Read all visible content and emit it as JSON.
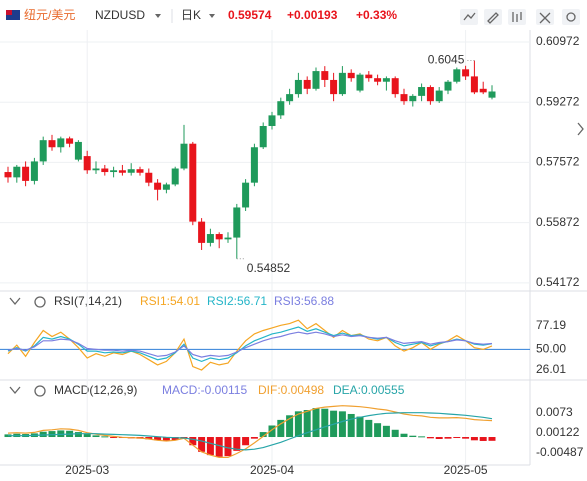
{
  "header": {
    "name": "纽元/美元",
    "symbol": "NZDUSD",
    "period": "日K",
    "price": "0.59574",
    "change": "+0.00193",
    "change_pct": "+0.33%"
  },
  "chart_data": [
    {
      "type": "candlestick",
      "categories": [
        null,
        null,
        null,
        null,
        null,
        null,
        null,
        null,
        null,
        "2025-03",
        null,
        null,
        null,
        null,
        null,
        null,
        null,
        null,
        null,
        null,
        null,
        null,
        null,
        null,
        null,
        null,
        null,
        null,
        null,
        null,
        "2025-04",
        null,
        null,
        null,
        null,
        null,
        null,
        null,
        null,
        null,
        null,
        null,
        null,
        null,
        null,
        null,
        null,
        null,
        null,
        null,
        null,
        null,
        "2025-05",
        null,
        null,
        null
      ],
      "open": [
        0.573,
        0.5715,
        0.5745,
        0.5705,
        0.576,
        0.582,
        0.58,
        0.5825,
        0.5765,
        0.5775,
        0.5735,
        0.574,
        0.573,
        0.5735,
        0.5728,
        0.5738,
        0.5728,
        0.57,
        0.568,
        0.5695,
        0.574,
        0.581,
        0.559,
        0.553,
        0.5555,
        0.554,
        0.5545,
        0.563,
        0.57,
        0.58,
        0.586,
        0.589,
        0.593,
        0.595,
        0.599,
        0.5965,
        0.6015,
        0.599,
        0.595,
        0.601,
        0.596,
        0.6005,
        0.5995,
        0.5985,
        0.5995,
        0.595,
        0.593,
        0.5945,
        0.597,
        0.593,
        0.596,
        0.5985,
        0.602,
        0.6,
        0.5965,
        0.594
      ],
      "high": [
        0.5745,
        0.575,
        0.576,
        0.577,
        0.583,
        0.5835,
        0.583,
        0.583,
        0.582,
        0.579,
        0.576,
        0.575,
        0.5745,
        0.575,
        0.5755,
        0.5745,
        0.574,
        0.571,
        0.57,
        0.5745,
        0.5863,
        0.5815,
        0.56,
        0.557,
        0.556,
        0.556,
        0.564,
        0.571,
        0.581,
        0.587,
        0.59,
        0.594,
        0.5965,
        0.601,
        0.6,
        0.6025,
        0.6029,
        0.601,
        0.60292,
        0.602,
        0.601,
        0.6015,
        0.6005,
        0.6,
        0.6,
        0.5965,
        0.595,
        0.598,
        0.5975,
        0.597,
        0.599,
        0.6025,
        0.603,
        0.6045,
        0.5985,
        0.5975
      ],
      "low": [
        0.57,
        0.57,
        0.569,
        0.5695,
        0.575,
        0.579,
        0.5785,
        0.58,
        0.576,
        0.5725,
        0.5725,
        0.572,
        0.5715,
        0.572,
        0.572,
        0.572,
        0.569,
        0.565,
        0.567,
        0.569,
        0.5735,
        0.558,
        0.551,
        0.552,
        0.5515,
        0.553,
        0.54852,
        0.562,
        0.569,
        0.5795,
        0.585,
        0.588,
        0.592,
        0.594,
        0.595,
        0.596,
        0.597,
        0.593,
        0.5945,
        0.5985,
        0.5955,
        0.5985,
        0.5975,
        0.596,
        0.594,
        0.592,
        0.5915,
        0.593,
        0.592,
        0.5925,
        0.595,
        0.598,
        0.599,
        0.595,
        0.595,
        0.5935
      ],
      "close": [
        0.5715,
        0.5745,
        0.5705,
        0.576,
        0.582,
        0.58,
        0.5825,
        0.581,
        0.5815,
        0.5735,
        0.574,
        0.573,
        0.5735,
        0.5728,
        0.5738,
        0.5728,
        0.57,
        0.568,
        0.5695,
        0.574,
        0.581,
        0.559,
        0.553,
        0.5555,
        0.554,
        0.5545,
        0.563,
        0.57,
        0.58,
        0.586,
        0.589,
        0.593,
        0.595,
        0.599,
        0.5965,
        0.6015,
        0.599,
        0.595,
        0.601,
        0.5995,
        0.6005,
        0.5995,
        0.5985,
        0.5995,
        0.595,
        0.593,
        0.5945,
        0.597,
        0.593,
        0.596,
        0.5985,
        0.602,
        0.6,
        0.5955,
        0.5955,
        0.59574
      ],
      "up_color": "#1f9a5b",
      "down_color": "#e8141c",
      "ylim": [
        0.5397,
        0.6131
      ],
      "yticks": [
        0.60972,
        0.59272,
        0.57572,
        0.55872,
        0.54172
      ],
      "grid": true
    },
    {
      "type": "line",
      "title": "RSI(7,14,21)",
      "series": [
        {
          "name": "RSI1",
          "label": "RSI1:54.01",
          "color": "#f5a623",
          "values": [
            45,
            55,
            42,
            58,
            72,
            65,
            70,
            62,
            52,
            40,
            45,
            42,
            46,
            44,
            48,
            44,
            38,
            32,
            36,
            46,
            62,
            30,
            26,
            35,
            32,
            34,
            48,
            60,
            68,
            72,
            75,
            78,
            80,
            84,
            74,
            80,
            72,
            64,
            72,
            66,
            68,
            62,
            60,
            64,
            54,
            48,
            52,
            58,
            50,
            56,
            60,
            66,
            60,
            52,
            50,
            54.01
          ]
        },
        {
          "name": "RSI2",
          "label": "RSI2:56.71",
          "color": "#25b5c8",
          "values": [
            48,
            52,
            48,
            54,
            64,
            62,
            65,
            62,
            56,
            48,
            48,
            46,
            47,
            46,
            48,
            46,
            42,
            38,
            40,
            46,
            56,
            40,
            36,
            40,
            38,
            40,
            46,
            54,
            60,
            64,
            68,
            70,
            73,
            76,
            71,
            74,
            70,
            66,
            69,
            66,
            67,
            64,
            62,
            64,
            58,
            54,
            56,
            58,
            54,
            57,
            59,
            62,
            60,
            56,
            55,
            56.71
          ]
        },
        {
          "name": "RSI3",
          "label": "RSI3:56.88",
          "color": "#7b7fe0",
          "values": [
            49,
            51,
            49,
            53,
            60,
            60,
            62,
            61,
            57,
            51,
            50,
            49,
            49,
            48,
            49,
            48,
            45,
            42,
            43,
            47,
            54,
            44,
            41,
            43,
            42,
            43,
            47,
            52,
            56,
            60,
            63,
            65,
            68,
            70,
            68,
            70,
            68,
            65,
            67,
            65,
            66,
            64,
            63,
            64,
            60,
            57,
            58,
            59,
            56,
            58,
            59,
            61,
            60,
            57,
            56,
            56.88
          ]
        }
      ],
      "reference_line": {
        "value": 50,
        "color": "#2f7fd8"
      },
      "ylim": [
        16.7,
        93.5
      ],
      "yticks": [
        77.19,
        {
          "value": 50,
          "label": "50.00"
        },
        26.01
      ]
    },
    {
      "type": "macd",
      "title": "MACD(12,26,9)",
      "hist": {
        "name": "MACD",
        "label": "MACD:-0.00115",
        "up_color": "#1f9a5b",
        "down_color": "#e8141c",
        "values": [
          0.0008,
          0.001,
          0.0009,
          0.0011,
          0.0016,
          0.0018,
          0.002,
          0.0019,
          0.0015,
          0.0009,
          0.0005,
          0.0002,
          -0.0001,
          -0.0003,
          -0.0004,
          -0.0005,
          -0.0007,
          -0.001,
          -0.0011,
          -0.0009,
          -0.0003,
          -0.0025,
          -0.0045,
          -0.0055,
          -0.006,
          -0.0058,
          -0.0042,
          -0.0025,
          -0.0005,
          0.0015,
          0.0035,
          0.0052,
          0.0066,
          0.0078,
          0.0082,
          0.0088,
          0.0086,
          0.008,
          0.0078,
          0.007,
          0.0062,
          0.0052,
          0.0042,
          0.0034,
          0.0022,
          0.001,
          0.0004,
          0.0002,
          -0.0004,
          -0.0006,
          -0.0005,
          -0.0003,
          -0.0005,
          -0.001,
          -0.0012,
          -0.00115
        ]
      },
      "series": [
        {
          "name": "DIF",
          "label": "DIF:0.00498",
          "color": "#f0a030",
          "values": [
            0.0012,
            0.0013,
            0.0012,
            0.0014,
            0.002,
            0.0022,
            0.0025,
            0.0024,
            0.002,
            0.0013,
            0.0009,
            0.0005,
            0.0002,
            -0.0001,
            -0.0002,
            -0.0003,
            -0.0006,
            -0.001,
            -0.0012,
            -0.001,
            -0.0004,
            -0.0025,
            -0.0045,
            -0.0055,
            -0.0062,
            -0.0062,
            -0.005,
            -0.0036,
            -0.0018,
            0.0002,
            0.0022,
            0.004,
            0.0056,
            0.007,
            0.0078,
            0.0087,
            0.0091,
            0.0093,
            0.0095,
            0.0094,
            0.0092,
            0.0089,
            0.0085,
            0.0082,
            0.0076,
            0.007,
            0.0066,
            0.0064,
            0.006,
            0.0058,
            0.0058,
            0.0059,
            0.0057,
            0.0053,
            0.0051,
            0.00498
          ]
        },
        {
          "name": "DEA",
          "label": "DEA:0.00555",
          "color": "#27a5a8",
          "values": [
            0.0004,
            0.0004,
            0.0004,
            0.0005,
            0.0006,
            0.0007,
            0.0008,
            0.0009,
            0.001,
            0.001,
            0.001,
            0.0009,
            0.0008,
            0.0007,
            0.0006,
            0.0005,
            0.0003,
            0.0001,
            -0.0001,
            -0.0002,
            -0.0003,
            -0.0007,
            -0.0012,
            -0.0019,
            -0.0026,
            -0.0033,
            -0.0037,
            -0.0039,
            -0.0037,
            -0.0032,
            -0.0024,
            -0.0016,
            -0.0006,
            0.0004,
            0.0013,
            0.0022,
            0.0031,
            0.0039,
            0.0047,
            0.0054,
            0.006,
            0.0065,
            0.0069,
            0.0072,
            0.0073,
            0.0074,
            0.0074,
            0.0074,
            0.0073,
            0.0072,
            0.007,
            0.0068,
            0.0066,
            0.0063,
            0.006,
            0.00555
          ]
        }
      ],
      "ylim": [
        -0.0085,
        0.0158
      ],
      "yticks": [
        0.0073,
        0.00122,
        -0.00487
      ]
    }
  ]
}
